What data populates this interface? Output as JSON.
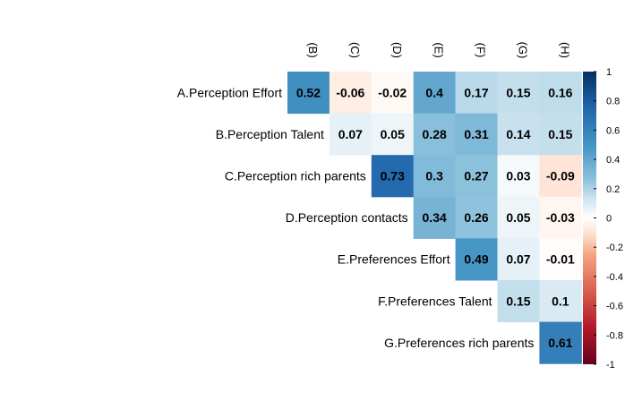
{
  "chart_data": {
    "type": "heatmap",
    "row_labels": [
      "A.Perception Effort",
      "B.Perception Talent",
      "C.Perception rich parents",
      "D.Perception contacts",
      "E.Preferences Effort",
      "F.Preferences Talent",
      "G.Preferences rich parents"
    ],
    "col_labels": [
      "(B)",
      "(C)",
      "(D)",
      "(E)",
      "(F)",
      "(G)",
      "(H)"
    ],
    "values": [
      [
        0.52,
        -0.06,
        -0.02,
        0.4,
        0.17,
        0.15,
        0.16
      ],
      [
        null,
        0.07,
        0.05,
        0.28,
        0.31,
        0.14,
        0.15
      ],
      [
        null,
        null,
        0.73,
        0.3,
        0.27,
        0.03,
        -0.09
      ],
      [
        null,
        null,
        null,
        0.34,
        0.26,
        0.05,
        -0.03
      ],
      [
        null,
        null,
        null,
        null,
        0.49,
        0.07,
        -0.01
      ],
      [
        null,
        null,
        null,
        null,
        null,
        0.15,
        0.1
      ],
      [
        null,
        null,
        null,
        null,
        null,
        null,
        0.61
      ]
    ],
    "colorbar": {
      "range": [
        -1,
        1
      ],
      "ticks": [
        "1",
        "0.8",
        "0.6",
        "0.4",
        "0.2",
        "0",
        "-0.2",
        "-0.4",
        "-0.6",
        "-0.8",
        "-1"
      ],
      "colors": {
        "negative_end": "#67001F",
        "mid_negative": "#D6604D",
        "light_negative": "#FDDBC7",
        "zero": "#FFFFFF",
        "light_positive": "#D1E5F0",
        "mid_positive": "#4393C3",
        "positive_end": "#053061"
      }
    },
    "legend_placement": "right",
    "grid": false
  }
}
